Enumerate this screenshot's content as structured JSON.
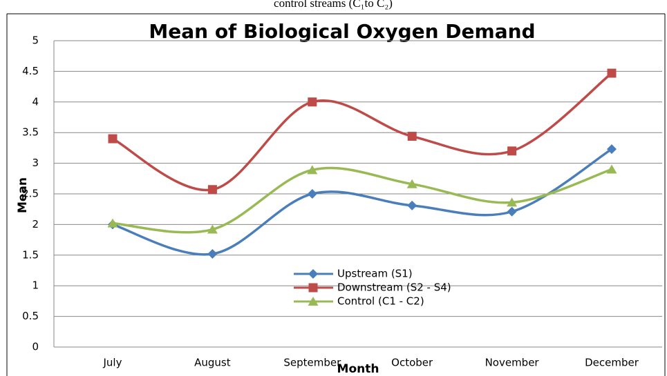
{
  "caption": "control streams (C₁to C₂)",
  "chart_data": {
    "type": "line",
    "title": "Mean of Biological Oxygen Demand",
    "x_label": "Month",
    "y_label": "Mean",
    "categories": [
      "July",
      "August",
      "September",
      "October",
      "November",
      "December"
    ],
    "series": [
      {
        "name": "Upstream (S1)",
        "color": "#4a7ebb",
        "marker": "diamond",
        "values": [
          2.0,
          1.52,
          2.5,
          2.31,
          2.21,
          3.23
        ]
      },
      {
        "name": "Downstream (S2 - S4)",
        "color": "#be4b48",
        "marker": "square",
        "values": [
          3.4,
          2.57,
          4.0,
          3.44,
          3.2,
          4.47
        ]
      },
      {
        "name": "Control (C1 - C2)",
        "color": "#98b954",
        "marker": "triangle",
        "values": [
          2.02,
          1.92,
          2.89,
          2.66,
          2.36,
          2.9
        ]
      }
    ],
    "ylim": [
      0,
      5
    ],
    "yticks": [
      0,
      0.5,
      1,
      1.5,
      2,
      2.5,
      3,
      3.5,
      4,
      4.5,
      5
    ],
    "grid": true,
    "smooth": true
  }
}
